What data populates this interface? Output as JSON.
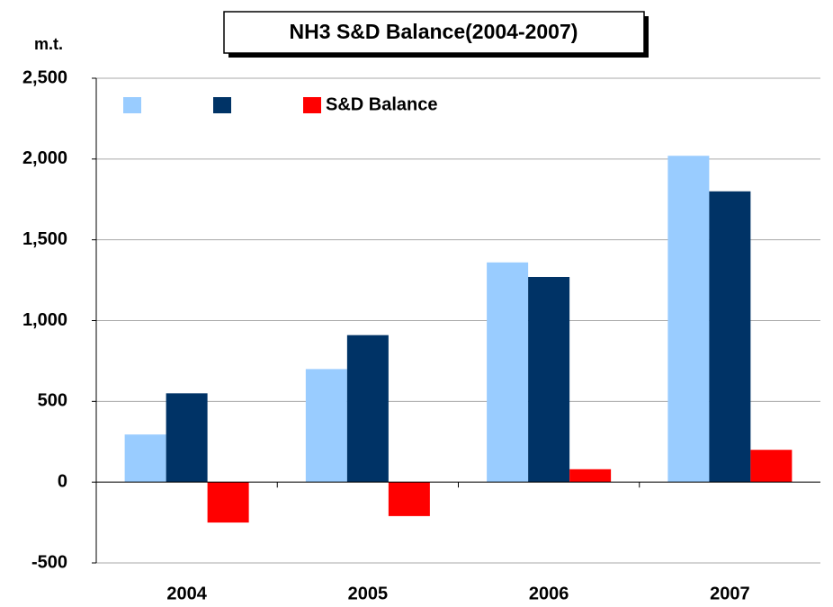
{
  "chart_data": {
    "type": "bar",
    "title": "NH3 S&D Balance(2004-2007)",
    "y_label": "m.t.",
    "categories": [
      "2004",
      "2005",
      "2006",
      "2007"
    ],
    "series": [
      {
        "color": "#99ccff",
        "values": [
          295,
          700,
          1360,
          2020
        ]
      },
      {
        "color": "#003366",
        "values": [
          550,
          910,
          1270,
          1800
        ]
      },
      {
        "name": "S&D Balance",
        "color": "#ff0000",
        "values": [
          -250,
          -210,
          80,
          200
        ]
      }
    ],
    "ylim": [
      -500,
      2500
    ],
    "yticks": [
      -500,
      0,
      500,
      {
        "value": 1000,
        "label": "1,000"
      },
      {
        "value": 1500,
        "label": "1,500"
      },
      {
        "value": 2000,
        "label": "2,000"
      },
      {
        "value": 2500,
        "label": "2,500"
      }
    ],
    "grid": true,
    "legend": "top-left"
  }
}
